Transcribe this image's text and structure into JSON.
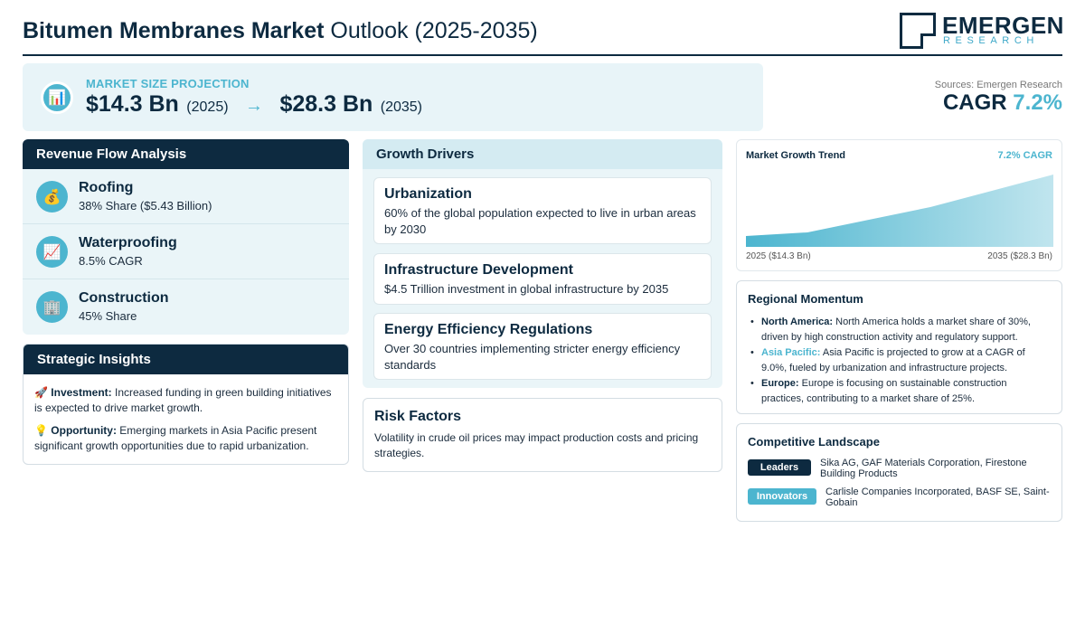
{
  "header": {
    "title_bold": "Bitumen Membranes Market",
    "title_light": "Outlook (2025-2035)",
    "logo_main": "EMERGEN",
    "logo_sub": "RESEARCH"
  },
  "projection": {
    "label": "MARKET SIZE PROJECTION",
    "start_value": "$14.3 Bn",
    "start_year": "(2025)",
    "arrow": "→",
    "end_value": "$28.3 Bn",
    "end_year": "(2035)",
    "icon": "bar-chart-icon"
  },
  "summary": {
    "sources": "Sources: Emergen Research",
    "cagr_label": "CAGR",
    "cagr_value": "7.2%"
  },
  "revenue": {
    "heading": "Revenue Flow Analysis",
    "items": [
      {
        "title": "Roofing",
        "sub": "38% Share ($5.43 Billion)",
        "icon": "money-bag-icon",
        "glyph": "💰"
      },
      {
        "title": "Waterproofing",
        "sub": "8.5% CAGR",
        "icon": "trending-up-icon",
        "glyph": "📈"
      },
      {
        "title": "Construction",
        "sub": "45% Share",
        "icon": "building-icon",
        "glyph": "🏢"
      }
    ]
  },
  "insights": {
    "heading": "Strategic Insights",
    "items": [
      {
        "glyph": "🚀",
        "label": "Investment:",
        "text": "Increased funding in green building initiatives is expected to drive market growth."
      },
      {
        "glyph": "💡",
        "label": "Opportunity:",
        "text": "Emerging markets in Asia Pacific present significant growth opportunities due to rapid urbanization."
      }
    ]
  },
  "drivers": {
    "heading": "Growth Drivers",
    "items": [
      {
        "title": "Urbanization",
        "text": "60% of the global population expected to live in urban areas by 2030"
      },
      {
        "title": "Infrastructure Development",
        "text": "$4.5 Trillion investment in global infrastructure by 2035"
      },
      {
        "title": "Energy Efficiency Regulations",
        "text": "Over 30 countries implementing stricter energy efficiency standards"
      }
    ]
  },
  "risk": {
    "title": "Risk Factors",
    "text": "Volatility in crude oil prices may impact production costs and pricing strategies."
  },
  "trend": {
    "title": "Market Growth Trend",
    "cagr": "7.2% CAGR",
    "start_label": "2025 ($14.3 Bn)",
    "end_label": "2035 ($28.3 Bn)",
    "fill_color": "#4cb5cf"
  },
  "regional": {
    "title": "Regional Momentum",
    "items": [
      {
        "label": "North America:",
        "text": "North America holds a market share of 30%, driven by high construction activity and regulatory support.",
        "highlight": false
      },
      {
        "label": "Asia Pacific:",
        "text": "Asia Pacific is projected to grow at a CAGR of 9.0%, fueled by urbanization and infrastructure projects.",
        "highlight": true
      },
      {
        "label": "Europe:",
        "text": "Europe is focusing on sustainable construction practices, contributing to a market share of 25%.",
        "highlight": false
      }
    ]
  },
  "competitive": {
    "title": "Competitive Landscape",
    "leaders_label": "Leaders",
    "leaders_text": "Sika AG, GAF Materials Corporation, Firestone Building Products",
    "innovators_label": "Innovators",
    "innovators_text": "Carlisle Companies Incorporated, BASF SE, Saint-Gobain"
  },
  "colors": {
    "navy": "#0d2a40",
    "teal": "#4cb5cf",
    "light_bg": "#eaf5f8"
  }
}
